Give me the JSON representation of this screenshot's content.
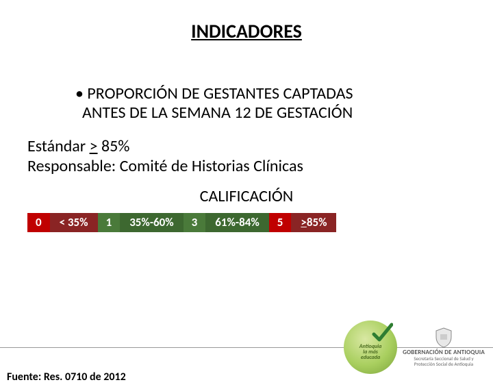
{
  "title": "INDICADORES",
  "bullet_marker": "•",
  "bullet_line1": "PROPORCIÓN DE GESTANTES CAPTADAS",
  "bullet_line2": "ANTES DE LA SEMANA 12 DE GESTACIÓN",
  "standard_label": "Estándar ",
  "standard_op": ">",
  "standard_value": " 85%",
  "responsible": "Responsable: Comité de Historias Clínicas",
  "calificacion": "CALIFICACIÓN",
  "scale": {
    "cells": [
      {
        "text": "0",
        "bg": "#c00000",
        "kind": "num"
      },
      {
        "text": "< 35%",
        "bg": "#8a2424",
        "kind": "lbl"
      },
      {
        "text": "1",
        "bg": "#4a7a3a",
        "kind": "num"
      },
      {
        "text": "35%-60%",
        "bg": "#3d6830",
        "kind": "lbl"
      },
      {
        "text": "3",
        "bg": "#4a7a3a",
        "kind": "num"
      },
      {
        "text": "61%-84%",
        "bg": "#3d6830",
        "kind": "lbl"
      },
      {
        "text": "5",
        "bg": "#c00000",
        "kind": "num"
      },
      {
        "text": "> 85%",
        "bg": "#8a2424",
        "kind": "lbl",
        "underline": true
      }
    ]
  },
  "source": "Fuente: Res. 0710 de 2012",
  "logo_antioquia_text1": "Antioquia",
  "logo_antioquia_text2": "la más",
  "logo_antioquia_text3": "educada",
  "gob_title": "GOBERNACIÓN DE ANTIOQUIA",
  "gob_sub1": "Secretaría Seccional de Salud y",
  "gob_sub2": "Protección Social de Antioquia",
  "colors": {
    "text": "#000000",
    "footer_line": "#999999",
    "check": "#2e7d32"
  }
}
